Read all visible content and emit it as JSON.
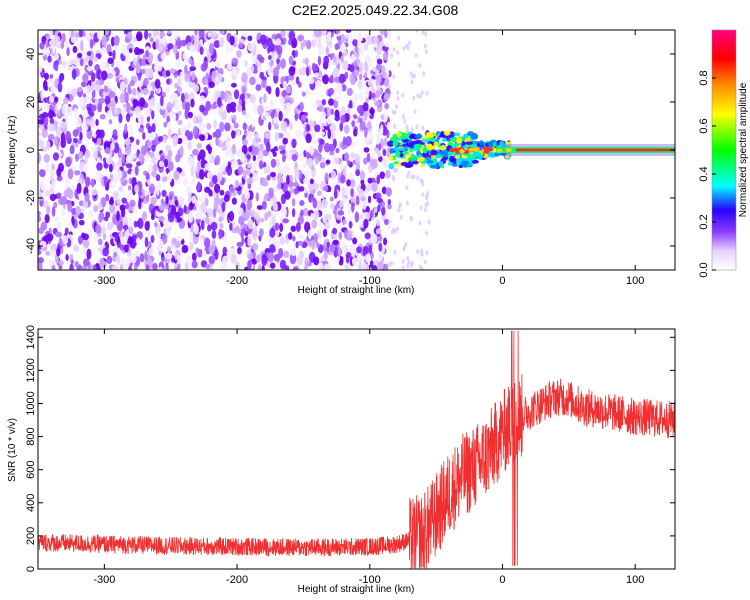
{
  "title": "C2E2.2025.049.22.34.G08",
  "colors": {
    "snr_line": "#f03030",
    "frame": "#000000",
    "colormap": [
      "#ffffff",
      "#e6d2ff",
      "#a455ff",
      "#6f00ff",
      "#0000ff",
      "#00ffff",
      "#00ff00",
      "#ffff00",
      "#ff8000",
      "#ff0000",
      "#ff0080"
    ]
  },
  "chart_data": [
    {
      "type": "heatmap",
      "xlabel": "Height of straight line (km)",
      "ylabel": "Frequency (Hz)",
      "xlim": [
        -350,
        130
      ],
      "ylim": [
        -50,
        50
      ],
      "xticks": [
        -300,
        -200,
        -100,
        0,
        100
      ],
      "yticks": [
        -40,
        -20,
        0,
        20,
        40
      ],
      "colorbar": {
        "label": "Normalized spectral amplitude",
        "range": [
          0,
          1
        ],
        "ticks": [
          0,
          0.2,
          0.4,
          0.6,
          0.8
        ],
        "tick_labels": [
          "0.0",
          "0.2",
          "0.4",
          "0.6",
          "0.8"
        ]
      },
      "description_values": {
        "noise_region_x": [
          -350,
          -85
        ],
        "signal_start_x": -85,
        "signal_center_freq": 0,
        "signal_peak_amplitude": 0.95
      }
    },
    {
      "type": "line",
      "xlabel": "Height of straight line (km)",
      "ylabel": "SNR (10 * v/v)",
      "xlim": [
        -350,
        130
      ],
      "ylim": [
        0,
        1450
      ],
      "xticks": [
        -300,
        -200,
        -100,
        0,
        100
      ],
      "yticks": [
        0,
        200,
        400,
        600,
        800,
        1000,
        1200,
        1400
      ],
      "series": [
        {
          "x": [
            -350,
            -300,
            -250,
            -200,
            -150,
            -100,
            -80,
            -60,
            -50,
            -40,
            -30,
            -20,
            -10,
            0,
            10,
            20,
            30,
            40,
            50,
            60,
            80,
            100,
            130
          ],
          "values": [
            160,
            150,
            140,
            135,
            130,
            135,
            150,
            200,
            320,
            460,
            560,
            620,
            700,
            820,
            900,
            950,
            1000,
            1040,
            1030,
            980,
            950,
            920,
            900
          ]
        }
      ]
    }
  ]
}
